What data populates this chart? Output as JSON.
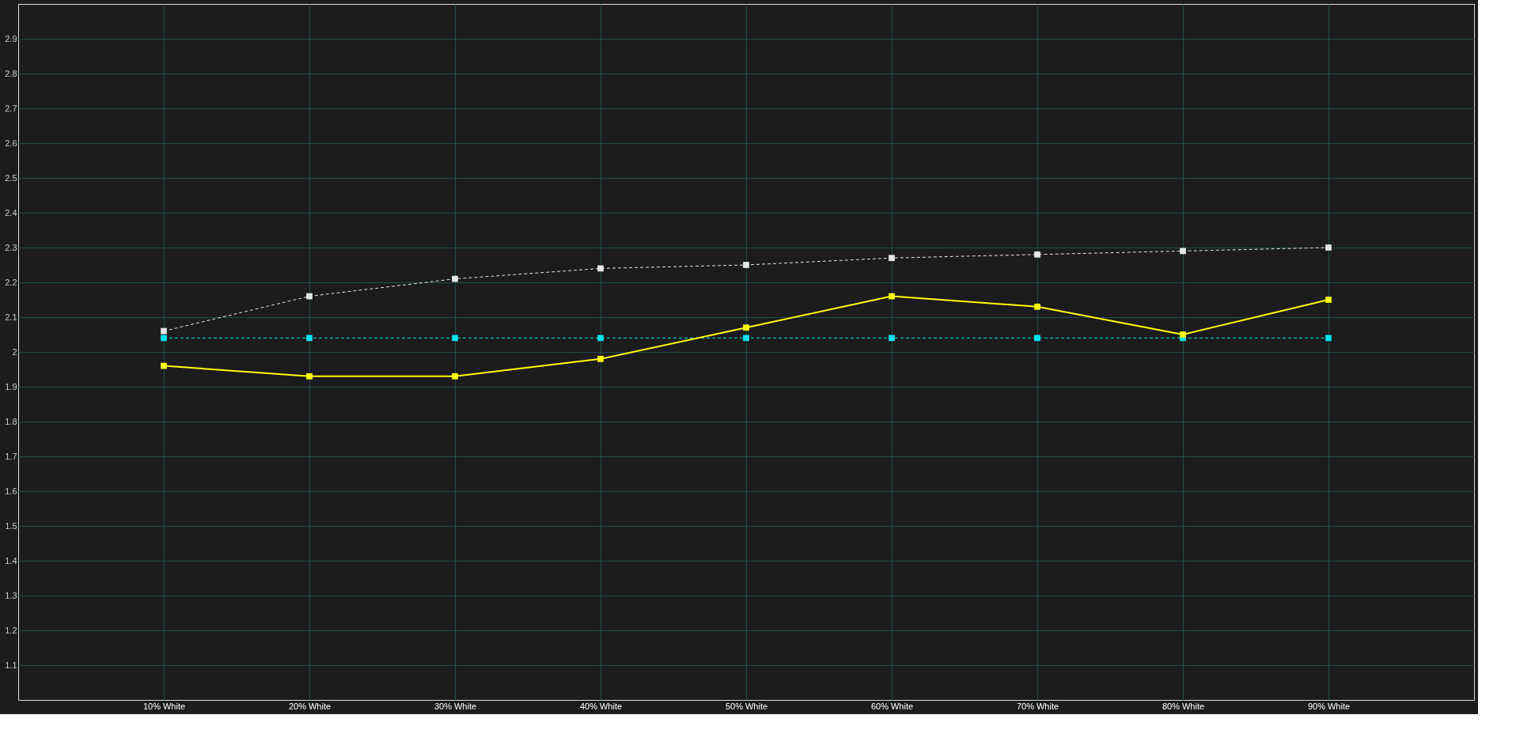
{
  "chart_data": {
    "type": "line",
    "x": [
      10,
      20,
      30,
      40,
      50,
      60,
      70,
      80,
      90
    ],
    "xlim": [
      0,
      100
    ],
    "xticks": [
      {
        "value": 10,
        "label": "10% White"
      },
      {
        "value": 20,
        "label": "20% White"
      },
      {
        "value": 30,
        "label": "30% White"
      },
      {
        "value": 40,
        "label": "40% White"
      },
      {
        "value": 50,
        "label": "50% White"
      },
      {
        "value": 60,
        "label": "60% White"
      },
      {
        "value": 70,
        "label": "70% White"
      },
      {
        "value": 80,
        "label": "80% White"
      },
      {
        "value": 90,
        "label": "90% White"
      }
    ],
    "ylim": [
      1.0,
      3.0
    ],
    "yticks": [
      1.1,
      1.2,
      1.3,
      1.4,
      1.5,
      1.6,
      1.7,
      1.8,
      1.9,
      2,
      2.1,
      2.2,
      2.3,
      2.4,
      2.5,
      2.6,
      2.7,
      2.8,
      2.9
    ],
    "grid": true,
    "marker": "square",
    "series": [
      {
        "color": "#e6e6e6",
        "line_style": "dashed",
        "values": [
          2.06,
          2.16,
          2.21,
          2.24,
          2.25,
          2.27,
          2.28,
          2.29,
          2.3
        ]
      },
      {
        "color": "#00e5ee",
        "line_style": "dashed",
        "values": [
          2.04,
          2.04,
          2.04,
          2.04,
          2.04,
          2.04,
          2.04,
          2.04,
          2.04
        ]
      },
      {
        "color": "#ffff00",
        "line_style": "solid",
        "values": [
          1.96,
          1.93,
          1.93,
          1.98,
          2.07,
          2.16,
          2.13,
          2.05,
          2.15
        ]
      }
    ]
  }
}
